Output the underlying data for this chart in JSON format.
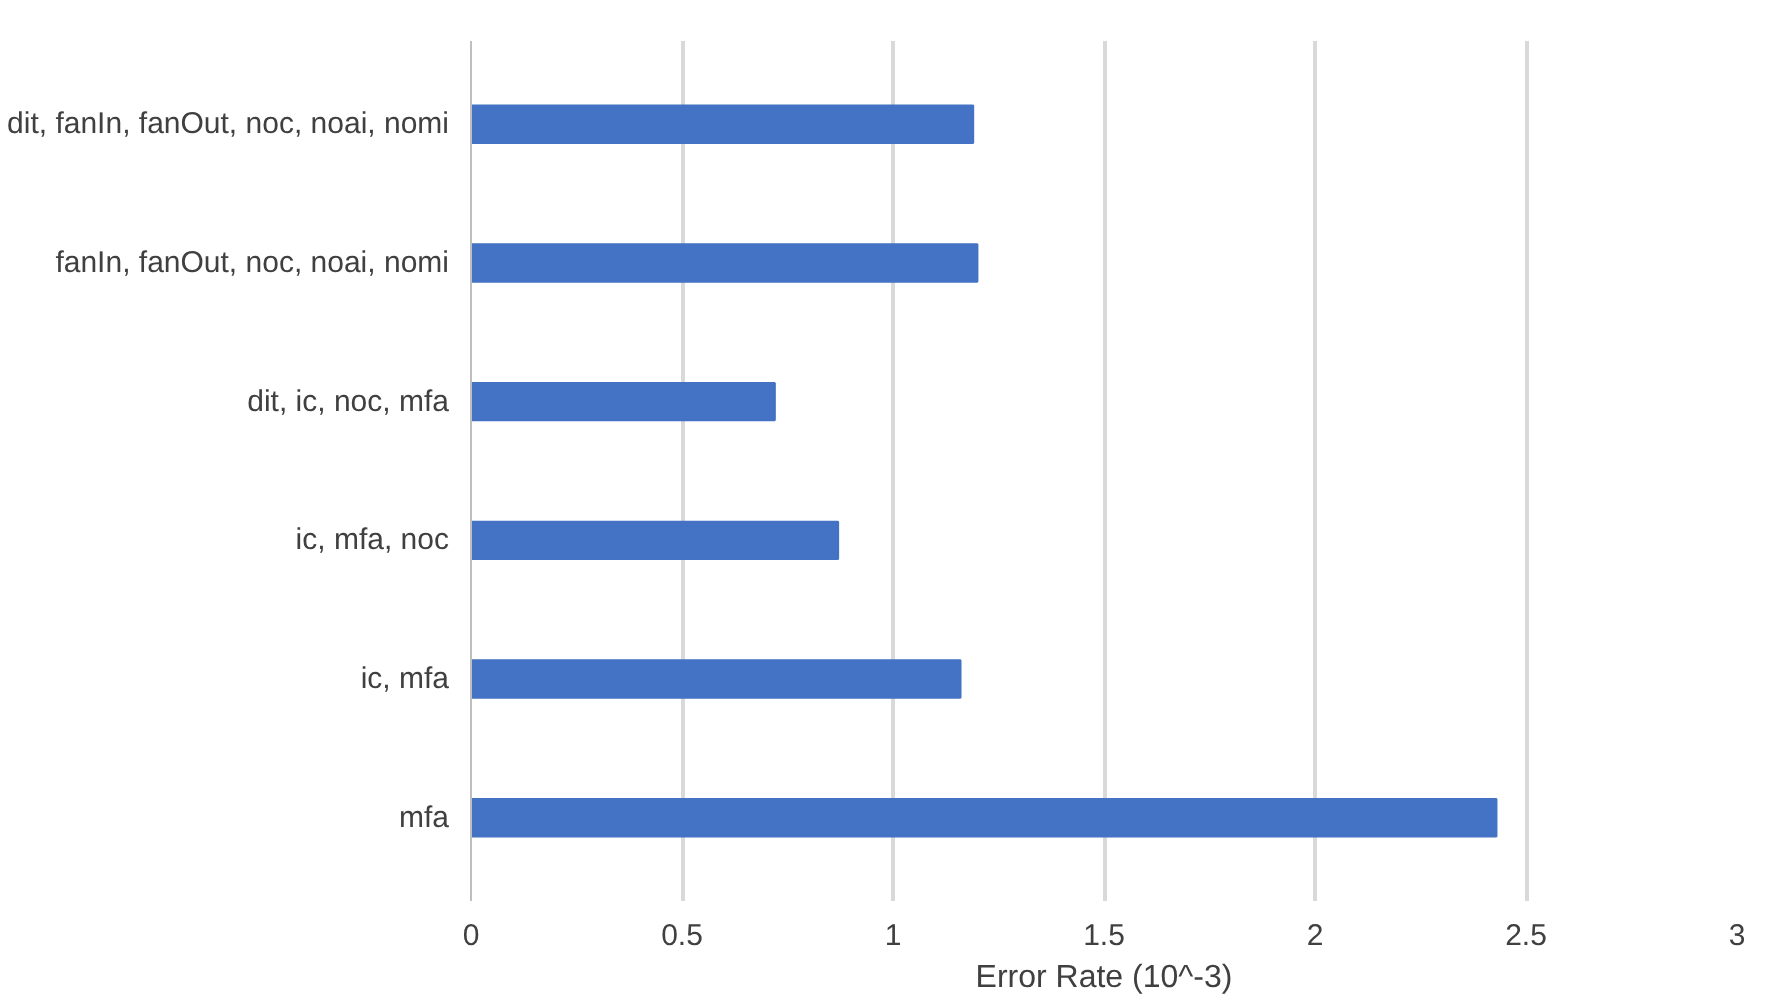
{
  "chart_data": {
    "type": "bar",
    "orientation": "horizontal",
    "categories": [
      "dit, fanIn, fanOut, noc, noai, nomi",
      "fanIn, fanOut, noc, noai, nomi",
      "dit, ic, noc, mfa",
      "ic, mfa, noc",
      "ic, mfa",
      "mfa"
    ],
    "values": [
      1.19,
      1.2,
      0.72,
      0.87,
      1.16,
      2.43
    ],
    "color": "#4472c4",
    "xlabel": "Error Rate (10^-3)",
    "xlim": [
      0,
      3
    ],
    "xticks": [
      0,
      0.5,
      1,
      1.5,
      2,
      2.5,
      3
    ],
    "grid": "x"
  }
}
